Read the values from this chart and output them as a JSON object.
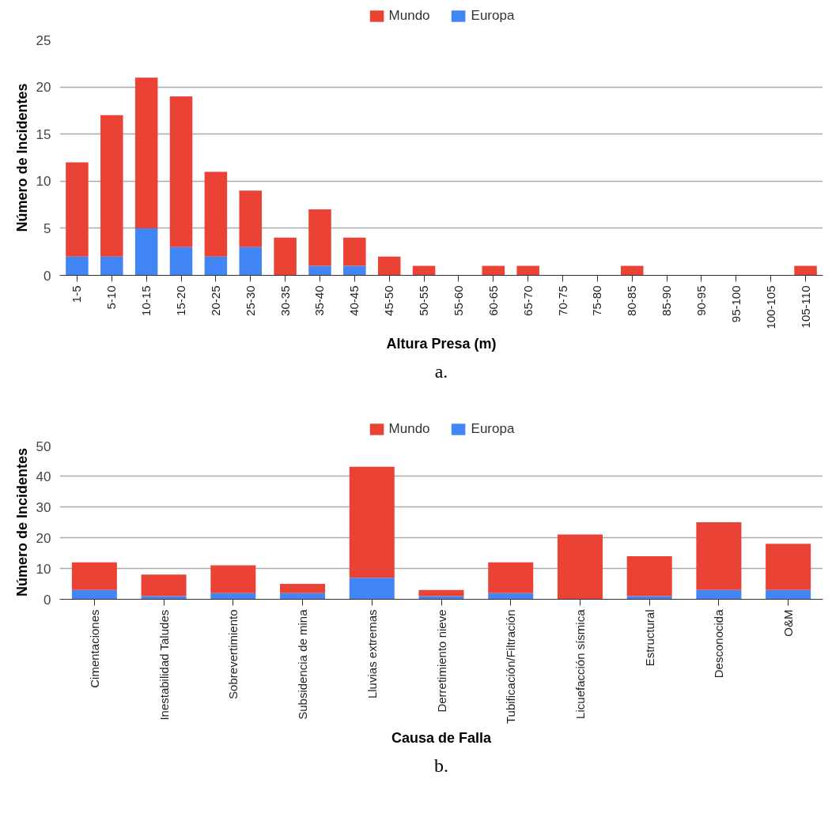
{
  "chart_data": [
    {
      "type": "bar",
      "stacked": true,
      "xlabel": "Altura Presa (m)",
      "ylabel": "Número de Incidentes",
      "ylim": [
        0,
        25
      ],
      "yticks": [
        0,
        5,
        10,
        15,
        20,
        25
      ],
      "grid": "y",
      "legend": "top",
      "annotations": [
        "a."
      ],
      "categories": [
        "1-5",
        "5-10",
        "10-15",
        "15-20",
        "20-25",
        "25-30",
        "30-35",
        "35-40",
        "40-45",
        "45-50",
        "50-55",
        "55-60",
        "60-65",
        "65-70",
        "70-75",
        "75-80",
        "80-85",
        "85-90",
        "90-95",
        "95-100",
        "100-105",
        "105-110"
      ],
      "series": [
        {
          "name": "Europa",
          "color": "#4285f4",
          "values": [
            2,
            2,
            5,
            3,
            2,
            3,
            0,
            1,
            1,
            0,
            0,
            0,
            0,
            0,
            0,
            0,
            0,
            0,
            0,
            0,
            0,
            0
          ]
        },
        {
          "name": "Mundo",
          "color": "#ea4335",
          "values": [
            10,
            15,
            16,
            16,
            9,
            6,
            4,
            6,
            3,
            2,
            1,
            0,
            1,
            1,
            0,
            0,
            1,
            0,
            0,
            0,
            0,
            1
          ]
        }
      ]
    },
    {
      "type": "bar",
      "stacked": true,
      "xlabel": "Causa de Falla",
      "ylabel": "Número de Incidentes",
      "ylim": [
        0,
        50
      ],
      "yticks": [
        0,
        10,
        20,
        30,
        40,
        50
      ],
      "grid": "y",
      "legend": "top",
      "annotations": [
        "b."
      ],
      "categories": [
        "Cimentaciones",
        "Inestabilidad Taludes",
        "Sobrevertimiento",
        "Subsidencia de mina",
        "Lluvias extremas",
        "Derretimiento nieve",
        "Tubificación/Filtración",
        "Licuefacción sísmica",
        "Estructural",
        "Desconocida",
        "O&M"
      ],
      "series": [
        {
          "name": "Europa",
          "color": "#4285f4",
          "values": [
            3,
            1,
            2,
            2,
            7,
            1,
            2,
            0,
            1,
            3,
            3
          ]
        },
        {
          "name": "Mundo",
          "color": "#ea4335",
          "values": [
            9,
            7,
            9,
            3,
            36,
            2,
            10,
            21,
            13,
            22,
            15
          ]
        }
      ]
    }
  ]
}
